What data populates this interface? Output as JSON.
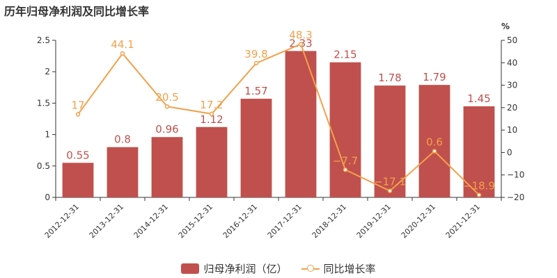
{
  "title": "历年归母净利润及同比增长率",
  "chart_data": {
    "type": "bar",
    "categories": [
      "2012-12-31",
      "2013-12-31",
      "2014-12-31",
      "2015-12-31",
      "2016-12-31",
      "2017-12-31",
      "2018-12-31",
      "2019-12-31",
      "2020-12-31",
      "2021-12-31"
    ],
    "series": [
      {
        "name": "归母净利润（亿）",
        "type": "bar",
        "values": [
          0.55,
          0.8,
          0.96,
          1.12,
          1.57,
          2.33,
          2.15,
          1.78,
          1.79,
          1.45
        ],
        "labels": [
          "0.55",
          "0.8",
          "0.96",
          "1.12",
          "1.57",
          "2.33",
          "2.15",
          "1.78",
          "1.79",
          "1.45"
        ],
        "color": "#c0504d",
        "axis": "left"
      },
      {
        "name": "同比增长率",
        "type": "line",
        "values": [
          17,
          44.1,
          20.5,
          17.2,
          39.8,
          48.3,
          -7.7,
          -17.1,
          0.6,
          -18.9
        ],
        "labels": [
          "17",
          "44.1",
          "20.5",
          "17.2",
          "39.8",
          "48.3",
          "−7.7",
          "−17.1",
          "0.6",
          "−18.9"
        ],
        "color": "#f2a14b",
        "axis": "right"
      }
    ],
    "yaxis_left": {
      "min": 0,
      "max": 2.5,
      "ticks": [
        "0",
        "0.5",
        "1",
        "1.5",
        "2",
        "2.5"
      ]
    },
    "yaxis_right": {
      "min": -20,
      "max": 50,
      "unit": "%",
      "ticks": [
        "−20",
        "−10",
        "0",
        "10",
        "20",
        "30",
        "40",
        "50"
      ]
    },
    "legend_position": "bottom-center",
    "grid": false
  }
}
